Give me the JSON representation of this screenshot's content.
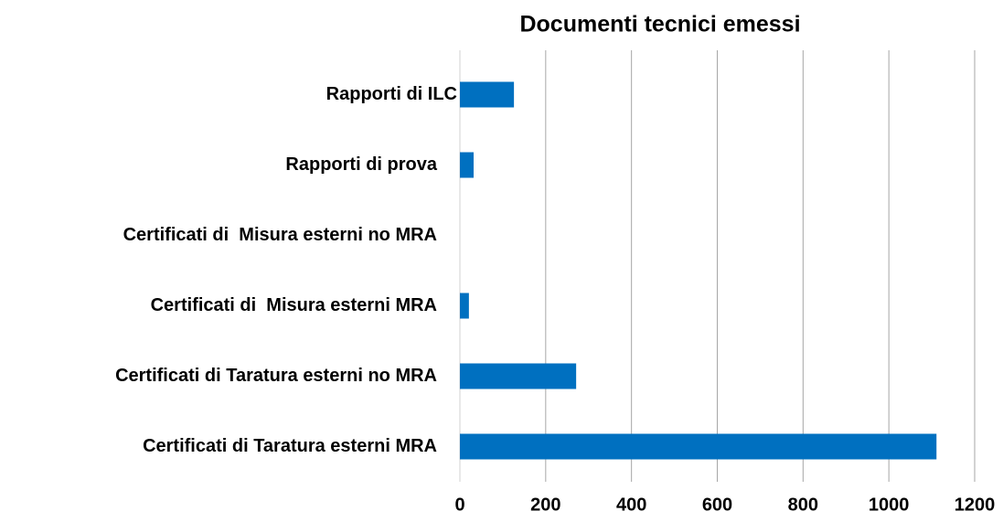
{
  "chart_data": {
    "type": "barh",
    "title": "Documenti tecnici emessi",
    "categories": [
      "Rapporti di ILC",
      "Rapporti di prova",
      "Certificati di  Misura esterni no MRA",
      "Certificati di  Misura esterni MRA",
      "Certificati di Taratura esterni no MRA",
      "Certificati di Taratura esterni MRA"
    ],
    "values": [
      126,
      32,
      0,
      21,
      271,
      1111
    ],
    "color": "#0070c0",
    "xlim": [
      0,
      1200
    ],
    "xticks": [
      0,
      200,
      400,
      600,
      800,
      1000,
      1200
    ],
    "grid": true
  }
}
